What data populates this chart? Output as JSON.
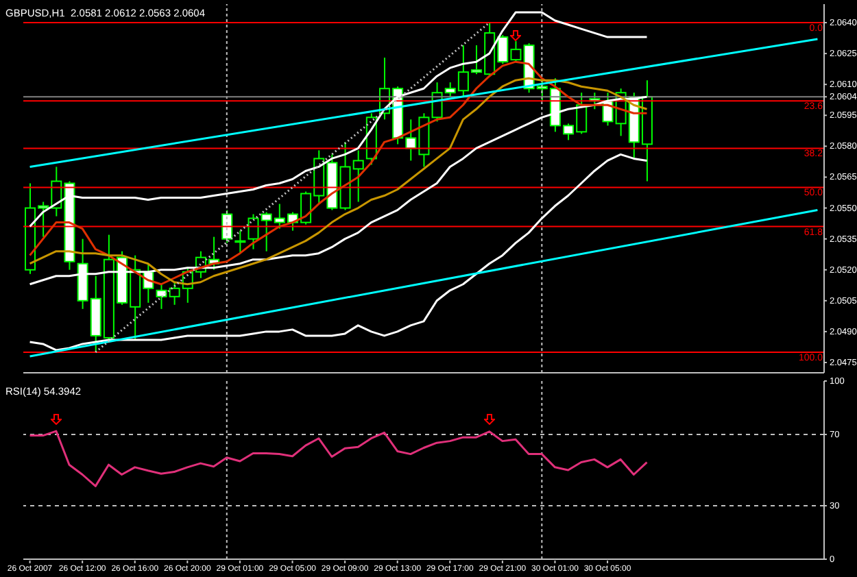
{
  "chart_data": [
    {
      "type": "candlestick",
      "title": "GBPUSD,H1  2.0581 2.0612 2.0563 2.0604",
      "tick_labels": "y",
      "categories": [
        null,
        null,
        null,
        null,
        null,
        null,
        null,
        null,
        null,
        null,
        null,
        null,
        null,
        null,
        null,
        null,
        null,
        null,
        null,
        null,
        null,
        null,
        null,
        null,
        null,
        null,
        null,
        null,
        null,
        null,
        null,
        null,
        null,
        null,
        null,
        null,
        null,
        null,
        null,
        null,
        null,
        null,
        null,
        null,
        null,
        null,
        null,
        null,
        null,
        null,
        null,
        null,
        null,
        null,
        null,
        null,
        null,
        null,
        null,
        null,
        null
      ],
      "ylim": [
        2.047,
        2.0649
      ],
      "yticks": [
        {
          "value": 2.064,
          "label": "2.0640"
        },
        {
          "value": 2.0625,
          "label": "2.0625"
        },
        {
          "value": 2.061,
          "label": "2.0610"
        },
        {
          "value": 2.0604,
          "label": "2.0604"
        },
        {
          "value": 2.0595,
          "label": "2.0595"
        },
        {
          "value": 2.058,
          "label": "2.0580"
        },
        {
          "value": 2.0565,
          "label": "2.0565"
        },
        {
          "value": 2.055,
          "label": "2.0550"
        },
        {
          "value": 2.0535,
          "label": "2.0535"
        },
        {
          "value": 2.052,
          "label": "2.0520"
        },
        {
          "value": 2.0505,
          "label": "2.0505"
        },
        {
          "value": 2.049,
          "label": "2.0490"
        },
        {
          "value": 2.0475,
          "label": "2.0475"
        }
      ],
      "series": [
        {
          "type": "candlestick",
          "color": "#00ff00",
          "colors": [
            "#000000",
            "#ffffff",
            "#000000",
            "#ffffff",
            "#ffffff",
            "#ffffff",
            "#000000",
            "#ffffff",
            "#000000",
            "#ffffff",
            "#ffffff",
            "#000000",
            "#000000",
            "#000000",
            "#ffffff",
            "#ffffff",
            "#000000",
            "#000000",
            "#ffffff",
            "#ffffff",
            "#ffffff",
            "#000000",
            "#000000",
            "#ffffff",
            "#000000",
            "#000000",
            "#000000",
            "#000000",
            "#ffffff",
            "#ffffff",
            "#000000",
            "#000000",
            "#ffffff",
            "#000000",
            "#ffffff",
            "#000000",
            "#ffffff",
            "#000000",
            "#ffffff",
            "#ffffff",
            "#ffffff",
            "#ffffff",
            "#000000",
            "#ffffff",
            "#ffffff",
            "#000000",
            "#ffffff",
            "#000000",
            null,
            null,
            null,
            null,
            null,
            null,
            null,
            null,
            null,
            null,
            null,
            null,
            null
          ],
          "ohlc": [
            [
              2.052,
              2.0562,
              2.0518,
              2.055
            ],
            [
              2.0551,
              2.0553,
              2.0536,
              2.055
            ],
            [
              2.055,
              2.057,
              2.0546,
              2.0563
            ],
            [
              2.0562,
              2.0563,
              2.052,
              2.0524
            ],
            [
              2.0523,
              2.0535,
              2.0501,
              2.0505
            ],
            [
              2.0506,
              2.0517,
              2.048,
              2.0488
            ],
            [
              2.0487,
              2.0537,
              2.0486,
              2.0525
            ],
            [
              2.0526,
              2.0529,
              2.0503,
              2.0504
            ],
            [
              2.0502,
              2.0527,
              2.0486,
              2.052
            ],
            [
              2.0519,
              2.0523,
              2.0504,
              2.0511
            ],
            [
              2.051,
              2.0513,
              2.0501,
              2.0507
            ],
            [
              2.0507,
              2.0514,
              2.0503,
              2.0511
            ],
            [
              2.0511,
              2.0521,
              2.0504,
              2.0519
            ],
            [
              2.0519,
              2.0529,
              2.0516,
              2.0526
            ],
            [
              2.0525,
              2.0536,
              2.052,
              2.0523
            ],
            [
              2.0547,
              2.0549,
              2.0533,
              2.0535
            ],
            [
              2.0534,
              2.0539,
              2.0528,
              2.0534
            ],
            [
              2.0535,
              2.0547,
              2.053,
              2.0545
            ],
            [
              2.0547,
              2.0548,
              2.0529,
              2.0544
            ],
            [
              2.0545,
              2.0552,
              2.054,
              2.0543
            ],
            [
              2.0547,
              2.0548,
              2.0539,
              2.0543
            ],
            [
              2.0543,
              2.0558,
              2.0542,
              2.0557
            ],
            [
              2.0556,
              2.0578,
              2.0552,
              2.0574
            ],
            [
              2.0572,
              2.0576,
              2.0549,
              2.055
            ],
            [
              2.055,
              2.0582,
              2.0549,
              2.057
            ],
            [
              2.0569,
              2.0578,
              2.0553,
              2.0573
            ],
            [
              2.0574,
              2.0596,
              2.0571,
              2.0594
            ],
            [
              2.0596,
              2.0623,
              2.0593,
              2.0608
            ],
            [
              2.0608,
              2.0609,
              2.0581,
              2.0584
            ],
            [
              2.0584,
              2.0593,
              2.0573,
              2.0579
            ],
            [
              2.0576,
              2.0596,
              2.057,
              2.0594
            ],
            [
              2.0594,
              2.0611,
              2.0592,
              2.0606
            ],
            [
              2.0608,
              2.0611,
              2.0604,
              2.0606
            ],
            [
              2.0607,
              2.0629,
              2.0604,
              2.0616
            ],
            [
              2.0617,
              2.0629,
              2.0615,
              2.0616
            ],
            [
              2.0615,
              2.064,
              2.0614,
              2.0635
            ],
            [
              2.0633,
              2.0634,
              2.062,
              2.0621
            ],
            [
              2.0622,
              2.0631,
              2.0621,
              2.0627
            ],
            [
              2.0629,
              2.063,
              2.0606,
              2.0608
            ],
            [
              2.0609,
              2.0613,
              2.0602,
              2.0608
            ],
            [
              2.0608,
              2.0613,
              2.0587,
              2.059
            ],
            [
              2.059,
              2.0591,
              2.0583,
              2.0586
            ],
            [
              2.0587,
              2.0606,
              2.0586,
              2.06
            ],
            [
              2.0603,
              2.0606,
              2.0598,
              2.0602
            ],
            [
              2.0602,
              2.0606,
              2.059,
              2.0592
            ],
            [
              2.0591,
              2.0608,
              2.0585,
              2.0606
            ],
            [
              2.0604,
              2.0606,
              2.0574,
              2.0582
            ],
            [
              2.0581,
              2.0612,
              2.0563,
              2.0604
            ],
            null,
            null,
            null,
            null,
            null,
            null,
            null,
            null,
            null,
            null,
            null,
            null,
            null
          ]
        },
        {
          "type": "line",
          "color": "#ffffff",
          "values": [
            2.0541,
            2.0548,
            2.0552,
            2.0556,
            2.0555,
            2.0555,
            2.0555,
            2.0555,
            2.0555,
            2.0554,
            2.0555,
            2.0555,
            2.0555,
            2.0555,
            2.0556,
            2.0557,
            2.0558,
            2.0559,
            2.0561,
            2.0562,
            2.0564,
            2.0568,
            2.057,
            2.0574,
            2.0576,
            2.0579,
            2.0588,
            2.0598,
            2.0604,
            2.0606,
            2.0608,
            2.0614,
            2.0618,
            2.062,
            2.0621,
            2.0625,
            2.0636,
            2.0645,
            2.0645,
            2.0645,
            2.0641,
            2.0639,
            2.0637,
            2.0635,
            2.0633,
            2.0633,
            2.0633,
            2.0633,
            null,
            null,
            null,
            null,
            null,
            null,
            null,
            null,
            null,
            null,
            null,
            null,
            null
          ]
        },
        {
          "type": "line",
          "color": "#ffffff",
          "values": [
            2.0513,
            2.0515,
            2.0517,
            2.0517,
            2.0518,
            2.0518,
            2.0519,
            2.0519,
            2.0519,
            2.0519,
            2.052,
            2.052,
            2.0521,
            2.0521,
            2.0521,
            2.0522,
            2.0523,
            2.0525,
            2.0525,
            2.0526,
            2.0527,
            2.0527,
            2.0528,
            2.0531,
            2.0535,
            2.0538,
            2.0543,
            2.0546,
            2.0549,
            2.0554,
            2.0558,
            2.0562,
            2.057,
            2.0574,
            2.0579,
            2.0582,
            2.0585,
            2.0588,
            2.0591,
            2.0594,
            2.0596,
            2.0598,
            2.0599,
            2.06,
            2.0602,
            2.0603,
            2.0603,
            2.0604,
            null,
            null,
            null,
            null,
            null,
            null,
            null,
            null,
            null,
            null,
            null,
            null,
            null
          ]
        },
        {
          "type": "line",
          "color": "#ffffff",
          "values": [
            2.0485,
            2.0484,
            2.0481,
            2.0482,
            2.0484,
            2.0485,
            2.0486,
            2.0486,
            2.0486,
            2.0486,
            2.0486,
            2.0487,
            2.0488,
            2.0488,
            2.0488,
            2.0488,
            2.0488,
            2.0489,
            2.049,
            2.049,
            2.0491,
            2.0488,
            2.0488,
            2.0488,
            2.0489,
            2.0493,
            2.049,
            2.0488,
            2.049,
            2.0493,
            2.0495,
            2.0505,
            2.051,
            2.0513,
            2.0518,
            2.0523,
            2.0527,
            2.0533,
            2.0538,
            2.0545,
            2.0551,
            2.0556,
            2.0562,
            2.0568,
            2.0573,
            2.0576,
            2.0574,
            2.0573,
            null,
            null,
            null,
            null,
            null,
            null,
            null,
            null,
            null,
            null,
            null,
            null,
            null
          ]
        },
        {
          "type": "line",
          "color": "#e03000",
          "values": [
            2.0527,
            2.0535,
            2.0543,
            2.0543,
            2.054,
            2.053,
            2.0527,
            2.0523,
            2.0519,
            2.0515,
            2.0513,
            2.0516,
            2.0519,
            2.0521,
            2.0523,
            2.0524,
            2.0528,
            2.0533,
            2.0537,
            2.0541,
            2.0543,
            2.0546,
            2.0552,
            2.0557,
            2.0561,
            2.0565,
            2.0572,
            2.0582,
            2.0584,
            2.0587,
            2.059,
            2.0593,
            2.0594,
            2.06,
            2.0608,
            2.0614,
            2.0619,
            2.0621,
            2.062,
            2.0613,
            2.0609,
            2.0604,
            2.06,
            2.06,
            2.06,
            2.0598,
            2.0596,
            2.0596,
            null,
            null,
            null,
            null,
            null,
            null,
            null,
            null,
            null,
            null,
            null,
            null,
            null
          ]
        },
        {
          "type": "line",
          "color": "#c89600",
          "values": [
            2.0523,
            2.0526,
            2.0529,
            2.0529,
            2.0528,
            2.0528,
            2.0527,
            2.0527,
            2.0525,
            2.0523,
            2.0518,
            2.0514,
            2.0513,
            2.0514,
            2.0517,
            2.0519,
            2.0521,
            2.0523,
            2.0525,
            2.0528,
            2.0531,
            2.0534,
            2.0538,
            2.0543,
            2.0547,
            2.055,
            2.0554,
            2.0556,
            2.0559,
            2.0564,
            2.0569,
            2.0574,
            2.0579,
            2.0593,
            2.0598,
            2.0604,
            2.0609,
            2.0612,
            2.0613,
            2.0612,
            2.0612,
            2.0611,
            2.0609,
            2.0608,
            2.0607,
            2.0604,
            2.06,
            2.0598,
            null,
            null,
            null,
            null,
            null,
            null,
            null,
            null,
            null,
            null,
            null,
            null,
            null
          ]
        },
        {
          "type": "line",
          "color": "#00ffff",
          "values": [
            2.057,
            null,
            null,
            null,
            null,
            null,
            null,
            null,
            null,
            null,
            null,
            null,
            null,
            null,
            null,
            null,
            null,
            null,
            null,
            null,
            null,
            null,
            null,
            null,
            null,
            null,
            null,
            null,
            null,
            null,
            null,
            null,
            null,
            null,
            null,
            null,
            null,
            null,
            null,
            null,
            null,
            null,
            null,
            null,
            null,
            null,
            null,
            null,
            null,
            null,
            null,
            null,
            null,
            null,
            null,
            null,
            null,
            null,
            null,
            null,
            2.0632
          ]
        },
        {
          "type": "line",
          "color": "#00ffff",
          "values": [
            2.0478,
            null,
            null,
            null,
            null,
            null,
            null,
            null,
            null,
            null,
            null,
            null,
            null,
            null,
            null,
            null,
            null,
            null,
            null,
            null,
            null,
            null,
            null,
            null,
            null,
            null,
            null,
            null,
            null,
            null,
            null,
            null,
            null,
            null,
            null,
            null,
            null,
            null,
            null,
            null,
            null,
            null,
            null,
            null,
            null,
            null,
            null,
            null,
            null,
            null,
            null,
            null,
            null,
            null,
            null,
            null,
            null,
            null,
            null,
            null,
            2.0549
          ]
        },
        {
          "type": "line",
          "color": "#c0c0c0",
          "line_style": "dotted",
          "values": [
            null,
            null,
            null,
            null,
            null,
            2.048,
            null,
            null,
            null,
            null,
            null,
            null,
            null,
            null,
            null,
            null,
            null,
            null,
            null,
            null,
            null,
            null,
            null,
            null,
            null,
            null,
            null,
            null,
            null,
            null,
            null,
            null,
            null,
            null,
            null,
            2.064,
            null,
            null,
            null,
            null,
            null,
            null,
            null,
            null,
            null,
            null,
            null,
            null,
            null,
            null,
            null,
            null,
            null,
            null,
            null,
            null,
            null,
            null,
            null,
            null,
            null
          ]
        }
      ],
      "ref_lines": [
        {
          "axis": "y",
          "value": 2.064,
          "color": "#ff0000"
        },
        {
          "axis": "y",
          "value": 2.0602,
          "color": "#ff0000"
        },
        {
          "axis": "y",
          "value": 2.0579,
          "color": "#ff0000"
        },
        {
          "axis": "y",
          "value": 2.056,
          "color": "#ff0000"
        },
        {
          "axis": "y",
          "value": 2.0541,
          "color": "#ff0000"
        },
        {
          "axis": "y",
          "value": 2.048,
          "color": "#ff0000"
        },
        {
          "axis": "y",
          "value": 2.0604,
          "color": "#808080"
        }
      ],
      "annotations": [
        {
          "text": "0.0",
          "y": 2.064
        },
        {
          "text": "23.6",
          "y": 2.0602
        },
        {
          "text": "38.2",
          "y": 2.0579
        },
        {
          "text": "50.0",
          "y": 2.056
        },
        {
          "text": "61.8",
          "y": 2.0541
        },
        {
          "text": "100.0",
          "y": 2.048
        }
      ]
    },
    {
      "type": "line",
      "title": "RSI(14) 54.3942",
      "categories": [
        "26 Oct 2007",
        null,
        null,
        null,
        "26 Oct 12:00",
        null,
        null,
        null,
        "26 Oct 16:00",
        null,
        null,
        null,
        "26 Oct 20:00",
        null,
        null,
        null,
        "29 Oct 01:00",
        null,
        null,
        null,
        "29 Oct 05:00",
        null,
        null,
        null,
        "29 Oct 09:00",
        null,
        null,
        null,
        "29 Oct 13:00",
        null,
        null,
        null,
        "29 Oct 17:00",
        null,
        null,
        null,
        "29 Oct 21:00",
        null,
        null,
        null,
        "30 Oct 01:00",
        null,
        null,
        null,
        "30 Oct 05:00",
        null,
        null,
        null,
        null,
        null,
        null,
        null,
        null,
        null,
        null,
        null,
        null,
        null,
        null,
        null,
        null
      ],
      "ylim": [
        0,
        100
      ],
      "yticks": [
        0,
        30,
        70,
        100
      ],
      "series": [
        {
          "color": "#e0307a",
          "values": [
            69.4,
            69.4,
            71.9,
            53,
            47.5,
            41,
            53,
            47.5,
            51.6,
            49.7,
            48,
            49,
            51.6,
            53.8,
            52,
            57,
            55,
            59.4,
            59.4,
            59,
            57.8,
            63.8,
            67.8,
            57.5,
            62.2,
            63,
            67.8,
            71,
            60.6,
            59,
            62.5,
            65.3,
            66.3,
            68.4,
            68.4,
            71.6,
            66.3,
            67.2,
            59,
            59,
            51.6,
            50,
            54.4,
            56,
            51.6,
            56,
            47.5,
            54.4,
            null,
            null,
            null,
            null,
            null,
            null,
            null,
            null,
            null,
            null,
            null,
            null,
            null
          ]
        }
      ],
      "ref_lines": [
        {
          "axis": "y",
          "value": 70,
          "color": "#c0c0c0",
          "line_style": "dashed"
        },
        {
          "axis": "y",
          "value": 30,
          "color": "#c0c0c0",
          "line_style": "dashed"
        }
      ]
    }
  ]
}
